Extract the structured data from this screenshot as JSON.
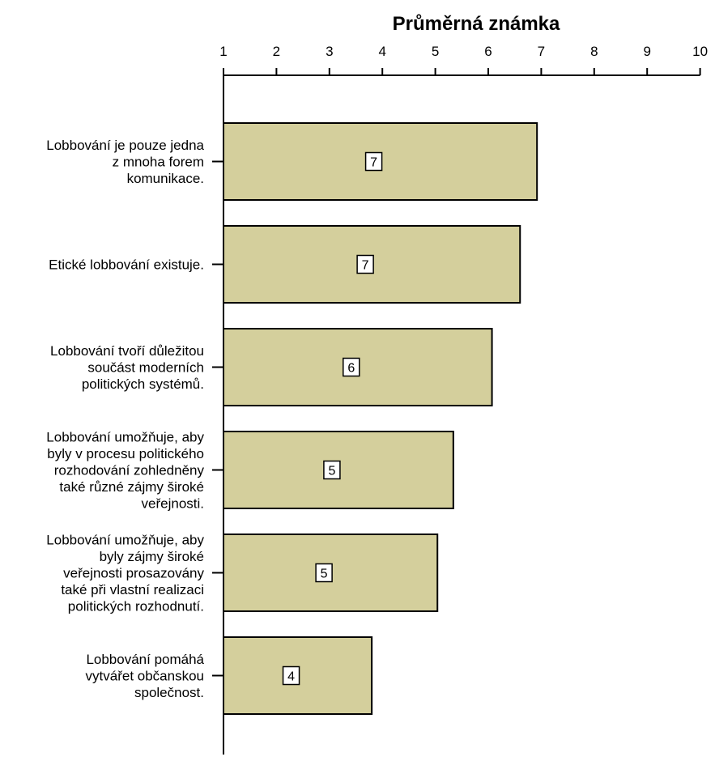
{
  "chart_data": {
    "type": "bar",
    "orientation": "horizontal",
    "title": "Průměrná známka",
    "xlabel": "",
    "ylabel": "",
    "xlim": [
      1,
      10
    ],
    "x_ticks": [
      "1",
      "2",
      "3",
      "4",
      "5",
      "6",
      "7",
      "8",
      "9",
      "10"
    ],
    "x_axis_position": "top",
    "grid": false,
    "legend": "none",
    "categories": [
      [
        "Lobbování je pouze jedna",
        "z mnoha forem",
        "komunikace."
      ],
      [
        "Etické lobbování existuje."
      ],
      [
        "Lobbování tvoří důležitou",
        "součást moderních",
        "politických systémů."
      ],
      [
        "Lobbování umožňuje, aby",
        "byly v procesu politického",
        "rozhodování zohledněny",
        "také různé zájmy široké",
        "veřejnosti."
      ],
      [
        "Lobbování umožňuje, aby",
        "byly zájmy široké",
        "veřejnosti prosazovány",
        "také při vlastní realizaci",
        "politických rozhodnutí."
      ],
      [
        "Lobbování pomáhá",
        "vytvářet občanskou",
        "společnost."
      ]
    ],
    "values": [
      6.92,
      6.6,
      6.07,
      5.34,
      5.04,
      3.8
    ],
    "data_labels": [
      "7",
      "7",
      "6",
      "5",
      "5",
      "4"
    ],
    "colors": {
      "bar_fill": "#d4cf9c",
      "bar_stroke": "#000000",
      "axis": "#000000",
      "label_box": "#ffffff"
    }
  }
}
